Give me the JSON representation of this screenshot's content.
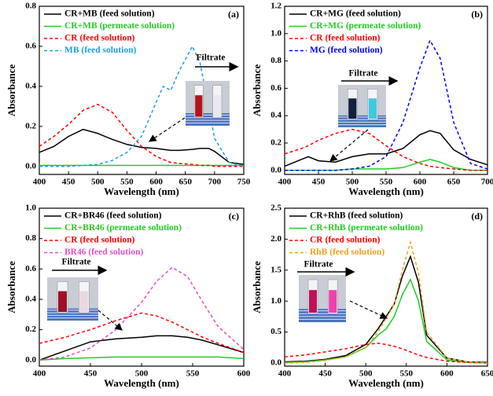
{
  "chart_data": [
    {
      "type": "line",
      "panel_label": "(a)",
      "x_label": "Wavelength (nm)",
      "y_label": "Absorbance",
      "inset_label": "Filtrate",
      "xlim": [
        400,
        750
      ],
      "xticks": [
        400,
        450,
        500,
        550,
        600,
        650,
        700,
        750
      ],
      "ylim": [
        -0.04,
        0.8
      ],
      "yticks": [
        {
          "value": 0,
          "label": "0.0"
        },
        {
          "value": 0.2,
          "label": "0.2"
        },
        {
          "value": 0.4,
          "label": "0.4"
        },
        {
          "value": 0.6,
          "label": "0.6"
        },
        {
          "value": 0.8,
          "label": "0.8"
        }
      ],
      "x": [
        400,
        425,
        450,
        475,
        500,
        525,
        550,
        575,
        600,
        612,
        625,
        640,
        662,
        675,
        690,
        700,
        725,
        750
      ],
      "series": [
        {
          "name": "CR+MB (feed solution)",
          "color": "#000000",
          "style": "solid",
          "values": [
            0.07,
            0.1,
            0.15,
            0.185,
            0.165,
            0.135,
            0.11,
            0.095,
            0.09,
            0.085,
            0.08,
            0.08,
            0.085,
            0.09,
            0.09,
            0.075,
            0.02,
            0.01
          ]
        },
        {
          "name": "CR+MB (permeate solution)",
          "color": "#22cc22",
          "style": "solid",
          "values": [
            0.005,
            0.005,
            0.005,
            0.005,
            0.005,
            0.005,
            0.005,
            0.005,
            0.005,
            0.005,
            0.005,
            0.005,
            0.005,
            0.005,
            0.005,
            0.005,
            0.005,
            0.005
          ]
        },
        {
          "name": "CR (feed solution)",
          "color": "#ff0000",
          "style": "dashed",
          "values": [
            0.1,
            0.15,
            0.21,
            0.28,
            0.31,
            0.27,
            0.18,
            0.1,
            0.05,
            0.035,
            0.02,
            0.015,
            0.01,
            0.005,
            0.005,
            0,
            0,
            0
          ]
        },
        {
          "name": "MB (feed solution)",
          "color": "#1ea0e6",
          "style": "dashed",
          "values": [
            0,
            0,
            0,
            0.005,
            0.01,
            0.03,
            0.07,
            0.15,
            0.32,
            0.4,
            0.38,
            0.48,
            0.6,
            0.52,
            0.3,
            0.14,
            0.02,
            0
          ]
        }
      ]
    },
    {
      "type": "line",
      "panel_label": "(b)",
      "x_label": "Wavelength (nm)",
      "y_label": "Absorbance",
      "inset_label": "Filtrate",
      "xlim": [
        400,
        700
      ],
      "xticks": [
        400,
        450,
        500,
        550,
        600,
        650,
        700
      ],
      "ylim": [
        -0.03,
        1.2
      ],
      "yticks": [
        {
          "value": 0,
          "label": "0.0"
        },
        {
          "value": 0.2,
          "label": "0.2"
        },
        {
          "value": 0.4,
          "label": "0.4"
        },
        {
          "value": 0.6,
          "label": "0.6"
        },
        {
          "value": 0.8,
          "label": "0.8"
        },
        {
          "value": 1,
          "label": "1.0"
        },
        {
          "value": 1.2,
          "label": "1.2"
        }
      ],
      "x": [
        400,
        425,
        435,
        450,
        475,
        500,
        525,
        550,
        575,
        600,
        615,
        630,
        650,
        675,
        700
      ],
      "series": [
        {
          "name": "CR+MG (feed solution)",
          "color": "#000000",
          "style": "solid",
          "values": [
            0.03,
            0.08,
            0.1,
            0.07,
            0.06,
            0.1,
            0.12,
            0.12,
            0.16,
            0.26,
            0.29,
            0.27,
            0.15,
            0.08,
            0.04
          ]
        },
        {
          "name": "CR+MG (permeate solution)",
          "color": "#22cc22",
          "style": "solid",
          "values": [
            0,
            0,
            0,
            0,
            0,
            0.01,
            0.01,
            0.01,
            0.02,
            0.06,
            0.08,
            0.06,
            0.02,
            0,
            0
          ]
        },
        {
          "name": "CR (feed solution)",
          "color": "#ff0000",
          "style": "dashed",
          "values": [
            0.12,
            0.16,
            0.18,
            0.22,
            0.27,
            0.3,
            0.27,
            0.18,
            0.1,
            0.05,
            0.03,
            0.02,
            0.01,
            0,
            0
          ]
        },
        {
          "name": "MG (feed solution)",
          "color": "#0000ff",
          "style": "dashed",
          "values": [
            0,
            0,
            0,
            0,
            0,
            0.01,
            0.03,
            0.1,
            0.35,
            0.75,
            0.95,
            0.82,
            0.35,
            0.05,
            0.01
          ]
        }
      ]
    },
    {
      "type": "line",
      "panel_label": "(c)",
      "x_label": "Wavelength (nm)",
      "y_label": "Absorbance",
      "inset_label": "Filtrate",
      "xlim": [
        400,
        600
      ],
      "xticks": [
        400,
        450,
        500,
        550,
        600
      ],
      "ylim": [
        -0.04,
        1.0
      ],
      "yticks": [
        {
          "value": 0,
          "label": "0.0"
        },
        {
          "value": 0.2,
          "label": "0.2"
        },
        {
          "value": 0.4,
          "label": "0.4"
        },
        {
          "value": 0.6,
          "label": "0.6"
        },
        {
          "value": 0.8,
          "label": "0.8"
        },
        {
          "value": 1,
          "label": "1.0"
        }
      ],
      "x": [
        400,
        425,
        450,
        475,
        500,
        515,
        530,
        545,
        560,
        575,
        600
      ],
      "series": [
        {
          "name": "CR+BR46 (feed solution)",
          "color": "#000000",
          "style": "solid",
          "values": [
            0,
            0.06,
            0.12,
            0.14,
            0.15,
            0.16,
            0.16,
            0.15,
            0.13,
            0.1,
            0.05
          ]
        },
        {
          "name": "CR+BR46 (permeate solution)",
          "color": "#22cc22",
          "style": "solid",
          "values": [
            0,
            0.01,
            0.015,
            0.02,
            0.02,
            0.02,
            0.02,
            0.02,
            0.02,
            0.02,
            0.01
          ]
        },
        {
          "name": "CR (feed solution)",
          "color": "#ff0000",
          "style": "dashed",
          "values": [
            0.11,
            0.15,
            0.2,
            0.26,
            0.31,
            0.29,
            0.25,
            0.2,
            0.15,
            0.11,
            0.05
          ]
        },
        {
          "name": "BR46 (feed solution)",
          "color": "#e050c8",
          "style": "dashed",
          "values": [
            0,
            0.02,
            0.08,
            0.2,
            0.38,
            0.52,
            0.61,
            0.55,
            0.38,
            0.22,
            0.07
          ]
        }
      ]
    },
    {
      "type": "line",
      "panel_label": "(d)",
      "x_label": "Wavelength (nm)",
      "y_label": "Absorbance",
      "inset_label": "Filtrate",
      "xlim": [
        400,
        650
      ],
      "xticks": [
        400,
        450,
        500,
        550,
        600,
        650
      ],
      "ylim": [
        -0.05,
        2.5
      ],
      "yticks": [
        {
          "value": 0,
          "label": "0.0"
        },
        {
          "value": 0.5,
          "label": "0.5"
        },
        {
          "value": 1,
          "label": "1.0"
        },
        {
          "value": 1.5,
          "label": "1.5"
        },
        {
          "value": 2,
          "label": "2.0"
        },
        {
          "value": 2.5,
          "label": "2.5"
        }
      ],
      "x": [
        400,
        425,
        450,
        475,
        500,
        515,
        525,
        535,
        545,
        555,
        565,
        575,
        600,
        625,
        650
      ],
      "series": [
        {
          "name": "CR+RhB (feed solution)",
          "color": "#000000",
          "style": "solid",
          "values": [
            0.02,
            0.03,
            0.06,
            0.12,
            0.3,
            0.55,
            0.75,
            0.95,
            1.4,
            1.72,
            1.3,
            0.45,
            0.08,
            0.02,
            0.01
          ]
        },
        {
          "name": "CR+RhB (permeate solution)",
          "color": "#22cc22",
          "style": "solid",
          "values": [
            0.01,
            0.02,
            0.05,
            0.1,
            0.25,
            0.45,
            0.55,
            0.75,
            1.1,
            1.35,
            1.0,
            0.35,
            0.05,
            0.01,
            0
          ]
        },
        {
          "name": "CR (feed solution)",
          "color": "#ff0000",
          "style": "dashed",
          "values": [
            0.1,
            0.13,
            0.18,
            0.23,
            0.3,
            0.32,
            0.3,
            0.27,
            0.23,
            0.18,
            0.13,
            0.09,
            0.03,
            0.01,
            0
          ]
        },
        {
          "name": "RhB (feed solution)",
          "color": "#f0a020",
          "style": "dashed",
          "values": [
            0,
            0.01,
            0.04,
            0.1,
            0.25,
            0.5,
            0.72,
            0.95,
            1.5,
            1.95,
            1.45,
            0.5,
            0.08,
            0.02,
            0
          ]
        }
      ]
    }
  ]
}
